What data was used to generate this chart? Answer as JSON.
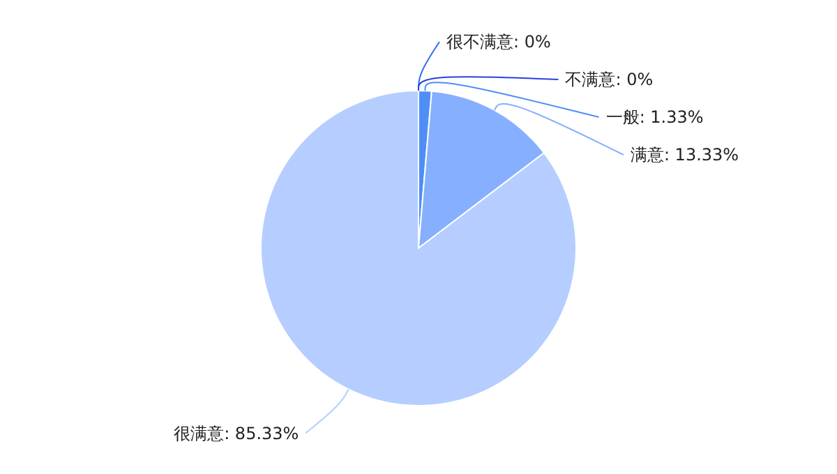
{
  "chart_data": {
    "type": "pie",
    "categories": [
      "很不满意",
      "不满意",
      "一般",
      "满意",
      "很满意"
    ],
    "values": [
      0,
      0,
      1.33,
      13.33,
      85.33
    ],
    "colors": [
      "#2a6df0",
      "#2b3fe0",
      "#4f8ef7",
      "#86b0ff",
      "#b5ceff"
    ],
    "value_labels": [
      ": 0%",
      ": 0%",
      ": 1.33%",
      ": 13.33%",
      ": 85.33%"
    ]
  }
}
